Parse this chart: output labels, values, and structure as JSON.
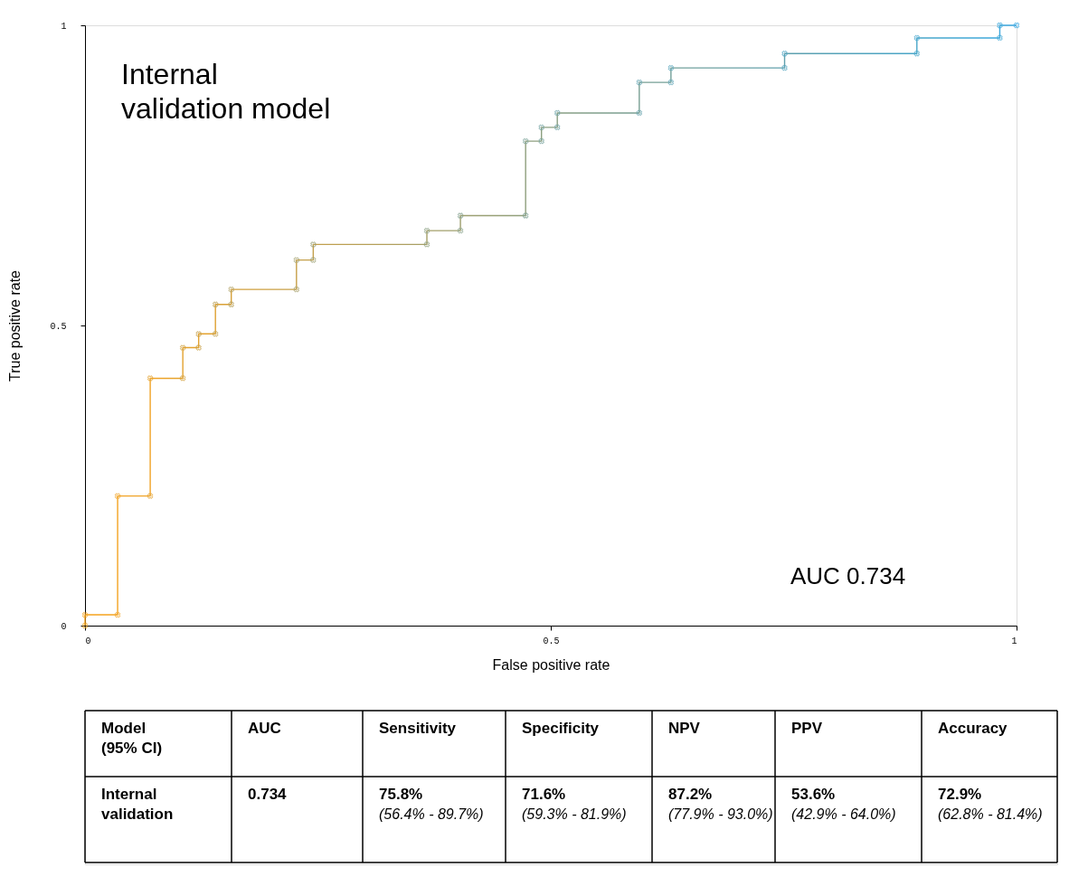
{
  "chart_data": {
    "type": "line",
    "title": "Internal validation model",
    "xlabel": "False positive rate",
    "ylabel": "True positive rate",
    "x": [
      0,
      0,
      0.035,
      0.035,
      0.07,
      0.07,
      0.105,
      0.105,
      0.122,
      0.122,
      0.14,
      0.14,
      0.157,
      0.157,
      0.227,
      0.227,
      0.245,
      0.245,
      0.367,
      0.367,
      0.403,
      0.403,
      0.473,
      0.473,
      0.49,
      0.49,
      0.507,
      0.507,
      0.595,
      0.595,
      0.629,
      0.629,
      0.751,
      0.751,
      0.893,
      0.893,
      0.982,
      0.982,
      1
    ],
    "series": [
      {
        "values": [
          0,
          0.018,
          0.018,
          0.216,
          0.216,
          0.412,
          0.412,
          0.463,
          0.463,
          0.486,
          0.486,
          0.535,
          0.535,
          0.56,
          0.56,
          0.609,
          0.609,
          0.635,
          0.635,
          0.658,
          0.658,
          0.683,
          0.683,
          0.807,
          0.807,
          0.83,
          0.83,
          0.854,
          0.854,
          0.905,
          0.905,
          0.929,
          0.929,
          0.953,
          0.953,
          0.979,
          0.979,
          1,
          1
        ],
        "colors": [
          "#f5a31e",
          "#f5a31e",
          "#f0a326",
          "#f0a326",
          "#e3a22f",
          "#e3a22f",
          "#d4a03a",
          "#cfa03f",
          "#c9a045",
          "#c49f4a",
          "#bf9f4f",
          "#b99f55",
          "#b49f5a",
          "#ae9f60",
          "#a59f68",
          "#a09f6d",
          "#9a9f73",
          "#969f77",
          "#8f9f7d",
          "#8a9f82",
          "#859f87",
          "#809f8c",
          "#7b9f91",
          "#779f95",
          "#729f99",
          "#6e9f9e",
          "#6a9fa2",
          "#66a0a6",
          "#62a0ab",
          "#5ea1b0",
          "#59a2b5",
          "#55a3ba",
          "#51a4bf",
          "#4da5c4",
          "#49a6c9",
          "#45a7cf",
          "#42a8d5",
          "#3fa8db",
          "#3ca9e2"
        ]
      }
    ],
    "xlim": [
      0,
      1
    ],
    "xticks": [
      0,
      0.5,
      1
    ],
    "ylim": [
      0,
      1
    ],
    "yticks": [
      0,
      0.5,
      1
    ],
    "marker": "cross",
    "grid": false,
    "annotations": [
      "AUC 0.734",
      "Model\n(95% CI)",
      "AUC",
      "Sensitivity",
      "Specificity",
      "NPV",
      "PPV",
      "Accuracy",
      "Internal\nvalidation",
      "0.734",
      "75.8%",
      "71.6%",
      "87.2%",
      "53.6%",
      "72.9%",
      "(56.4% - 89.7%)",
      "(59.3% - 81.9%)",
      "(77.9% - 93.0%)",
      "(42.9% - 64.0%)",
      "(62.8% - 81.4%)"
    ]
  }
}
